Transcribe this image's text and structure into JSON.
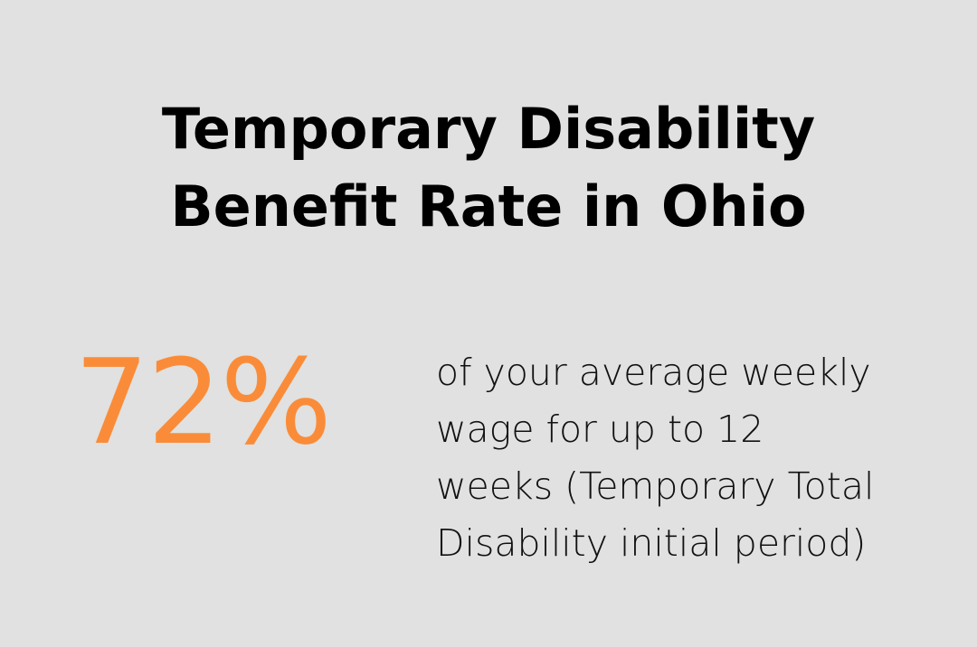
{
  "title": {
    "line1": "Temporary Disability",
    "line2": "Benefit Rate in Ohio"
  },
  "stat": {
    "value": "72%"
  },
  "description": {
    "lines": [
      "of your average weekly",
      "wage for up to 12",
      "weeks (Temporary Total",
      "Disability initial period)"
    ]
  },
  "colors": {
    "background": "#e0e1e0",
    "accent": "#fa8c39",
    "text": "#000000"
  }
}
